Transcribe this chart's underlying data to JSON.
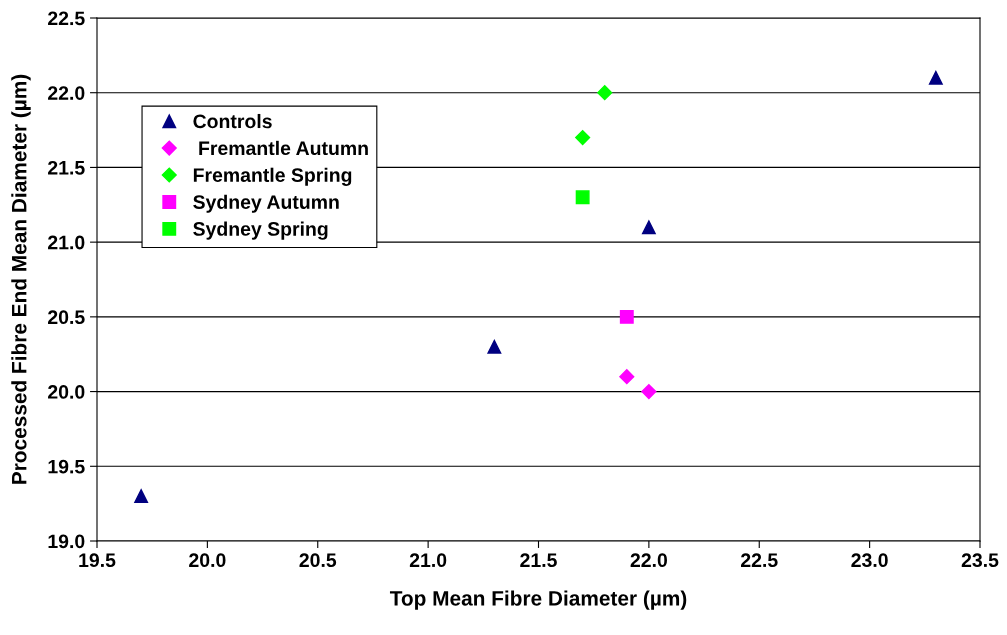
{
  "chart_data": {
    "type": "scatter",
    "xlabel": "Top Mean Fibre Diameter (µm)",
    "ylabel": "Processed Fibre End Mean Diameter (µm)",
    "xlim": [
      19.5,
      23.5
    ],
    "xticks": [
      {
        "value": 19.5,
        "label": "19.5"
      },
      {
        "value": 20.0,
        "label": "20.0"
      },
      {
        "value": 20.5,
        "label": "20.5"
      },
      {
        "value": 21.0,
        "label": "21.0"
      },
      {
        "value": 21.5,
        "label": "21.5"
      },
      {
        "value": 22.0,
        "label": "22.0"
      },
      {
        "value": 22.5,
        "label": "22.5"
      },
      {
        "value": 23.0,
        "label": "23.0"
      },
      {
        "value": 23.5,
        "label": "23.5"
      }
    ],
    "ylim": [
      19.0,
      22.5
    ],
    "yticks": [
      {
        "value": 19.0,
        "label": "19.0"
      },
      {
        "value": 19.5,
        "label": "19.5"
      },
      {
        "value": 20.0,
        "label": "20.0"
      },
      {
        "value": 20.5,
        "label": "20.5"
      },
      {
        "value": 21.0,
        "label": "21.0"
      },
      {
        "value": 21.5,
        "label": "21.5"
      },
      {
        "value": 22.0,
        "label": "22.0"
      },
      {
        "value": 22.5,
        "label": "22.5"
      }
    ],
    "grid": "y",
    "legend": "top left",
    "series": [
      {
        "name": "Controls",
        "color": "#000080",
        "marker": "triangle",
        "x": [
          19.7,
          21.3,
          22.0,
          23.3
        ],
        "values": [
          19.3,
          20.3,
          21.1,
          22.1
        ]
      },
      {
        "name": " Fremantle Autumn",
        "color": "#ff00ff",
        "marker": "diamond",
        "x": [
          21.9,
          22.0
        ],
        "values": [
          20.1,
          20.0
        ]
      },
      {
        "name": "Fremantle Spring",
        "color": "#00ff00",
        "marker": "diamond",
        "x": [
          21.7,
          21.8
        ],
        "values": [
          21.7,
          22.0
        ]
      },
      {
        "name": "Sydney Autumn",
        "color": "#ff00ff",
        "marker": "square",
        "x": [
          21.9
        ],
        "values": [
          20.5
        ]
      },
      {
        "name": "Sydney Spring",
        "color": "#00ff00",
        "marker": "square",
        "x": [
          21.7
        ],
        "values": [
          21.3
        ]
      }
    ]
  }
}
